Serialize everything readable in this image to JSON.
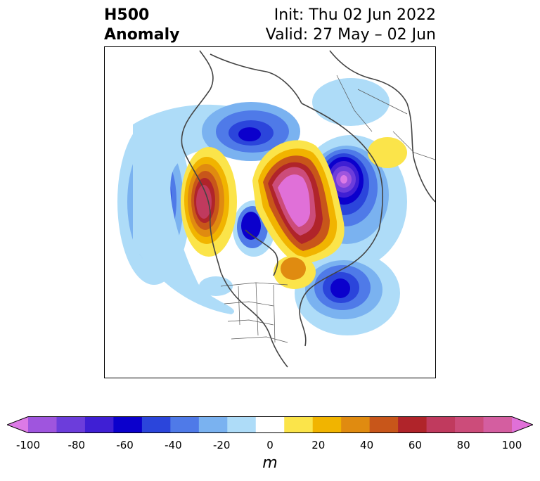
{
  "header": {
    "title_line1": "H500",
    "title_line2": "Anomaly",
    "init_text": "Init: Thu 02 Jun 2022",
    "valid_text": "Valid: 27 May – 02 Jun"
  },
  "colorbar": {
    "units": "m",
    "min": -100,
    "max": 100,
    "tick_values": [
      -100,
      -80,
      -60,
      -40,
      -20,
      0,
      20,
      40,
      60,
      80,
      100
    ],
    "tick_labels": [
      "-100",
      "-80",
      "-60",
      "-40",
      "-20",
      "0",
      "20",
      "40",
      "60",
      "80",
      "100"
    ],
    "colors": [
      "#dc7ae6",
      "#9f55de",
      "#6c3ddb",
      "#3f1fd4",
      "#0b00cc",
      "#2b45db",
      "#4f7ae8",
      "#7ab2f0",
      "#aedcf8",
      "#ffffff",
      "#fbe44a",
      "#f1b400",
      "#e08b10",
      "#c8561a",
      "#b0242a",
      "#c03a5e",
      "#cc4c7a",
      "#d45ea0",
      "#e070d8"
    ]
  },
  "map": {
    "projection": "north-polar-stereographic",
    "field": "500 hPa geopotential height anomaly"
  }
}
